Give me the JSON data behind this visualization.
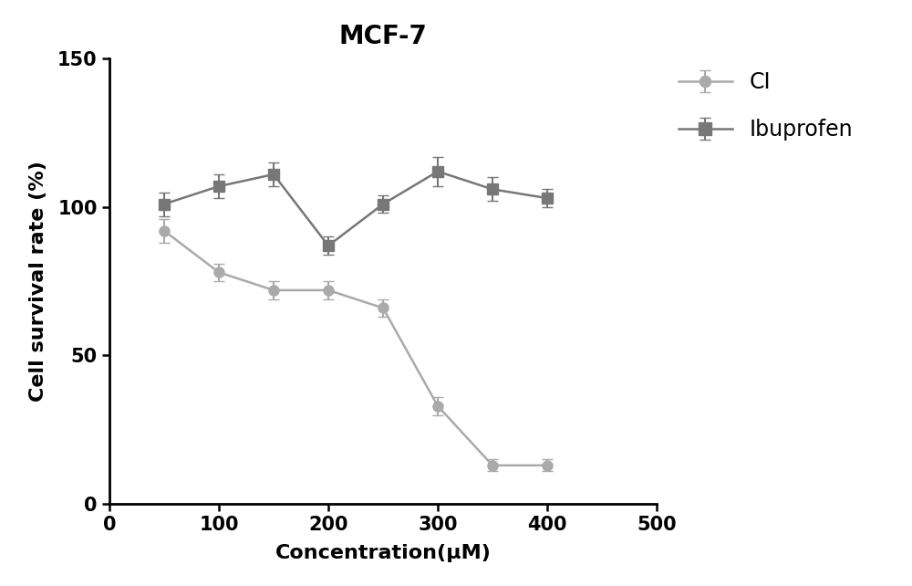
{
  "title": "MCF-7",
  "xlabel": "Concentration(μM)",
  "ylabel": "Cell survival rate (%)",
  "xlim": [
    0,
    500
  ],
  "ylim": [
    0,
    150
  ],
  "xticks": [
    0,
    100,
    200,
    300,
    400,
    500
  ],
  "yticks": [
    0,
    50,
    100,
    150
  ],
  "CI": {
    "x": [
      50,
      100,
      150,
      200,
      250,
      300,
      350,
      400
    ],
    "y": [
      92,
      78,
      72,
      72,
      66,
      33,
      13,
      13
    ],
    "yerr": [
      4,
      3,
      3,
      3,
      3,
      3,
      2,
      2
    ],
    "color": "#aaaaaa",
    "marker": "o",
    "label": "CI"
  },
  "Ibuprofen": {
    "x": [
      50,
      100,
      150,
      200,
      250,
      300,
      350,
      400
    ],
    "y": [
      101,
      107,
      111,
      87,
      101,
      112,
      106,
      103
    ],
    "yerr": [
      4,
      4,
      4,
      3,
      3,
      5,
      4,
      3
    ],
    "color": "#777777",
    "marker": "s",
    "label": "Ibuprofen"
  },
  "title_fontsize": 20,
  "label_fontsize": 16,
  "tick_fontsize": 15,
  "legend_fontsize": 17
}
